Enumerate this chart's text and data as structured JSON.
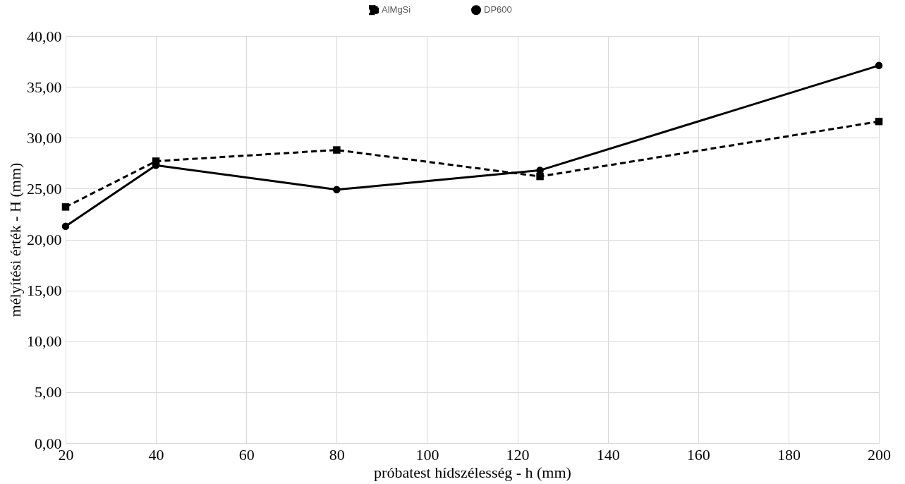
{
  "chart_data": {
    "type": "line",
    "xlabel": "próbatest hídszélesség - h (mm)",
    "ylabel": "mélyítési érték - H  (mm)",
    "series": [
      {
        "name": "AlMgSi",
        "color": "#000000",
        "marker": "square",
        "line_style": "dashed",
        "x": [
          20,
          40,
          80,
          125,
          200
        ],
        "values": [
          23.2,
          27.7,
          28.8,
          26.2,
          31.6
        ]
      },
      {
        "name": "DP600",
        "color": "#000000",
        "marker": "circle",
        "line_style": "solid",
        "x": [
          20,
          40,
          80,
          125,
          200
        ],
        "values": [
          21.3,
          27.3,
          24.9,
          26.8,
          37.1
        ]
      }
    ],
    "xlim": [
      20,
      200
    ],
    "xticks": [
      20,
      40,
      60,
      80,
      100,
      120,
      140,
      160,
      180,
      200
    ],
    "ylim": [
      0,
      40
    ],
    "yticks": [
      {
        "value": 0,
        "label": "0,00"
      },
      {
        "value": 5,
        "label": "5,00"
      },
      {
        "value": 10,
        "label": "10,00"
      },
      {
        "value": 15,
        "label": "15,00"
      },
      {
        "value": 20,
        "label": "20,00"
      },
      {
        "value": 25,
        "label": "25,00"
      },
      {
        "value": 30,
        "label": "30,00"
      },
      {
        "value": 35,
        "label": "35,00"
      },
      {
        "value": 40,
        "label": "40,00"
      }
    ],
    "grid": true,
    "legend": "top"
  }
}
